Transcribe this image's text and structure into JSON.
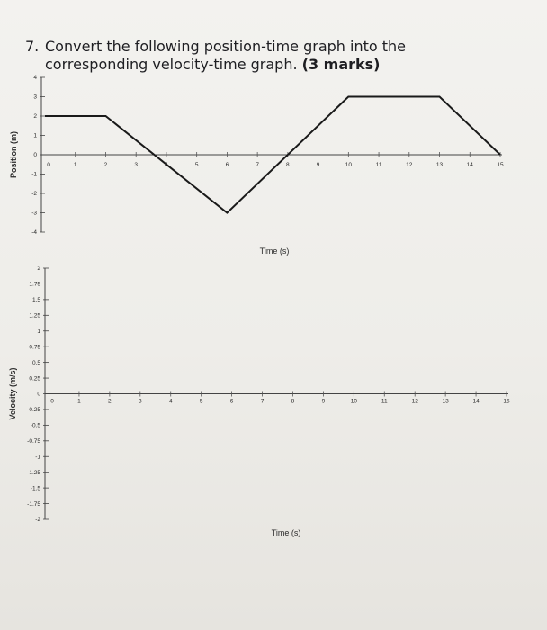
{
  "question": {
    "number": "7.",
    "text": "Convert the following position-time graph into the corresponding velocity-time graph.",
    "marks": "(3 marks)"
  },
  "chart_data": [
    {
      "type": "line",
      "xlabel": "Time (s)",
      "ylabel": "Position (m)",
      "xlim": [
        0,
        15
      ],
      "ylim": [
        -4,
        4
      ],
      "x_ticks": [
        "0",
        "1",
        "2",
        "3",
        "4",
        "5",
        "6",
        "7",
        "8",
        "9",
        "10",
        "11",
        "12",
        "13",
        "14",
        "15"
      ],
      "y_ticks": [
        "4",
        "3",
        "2",
        "1",
        "0",
        "-1",
        "-2",
        "-3",
        "-4"
      ],
      "series": [
        {
          "x": [
            0,
            2,
            6,
            10,
            13,
            15
          ],
          "y": [
            2,
            2,
            -3,
            3,
            3,
            0
          ]
        }
      ]
    },
    {
      "type": "line",
      "xlabel": "Time (s)",
      "ylabel": "Velocity (m/s)",
      "xlim": [
        0,
        15
      ],
      "ylim": [
        -2,
        2
      ],
      "x_ticks": [
        "0",
        "1",
        "2",
        "3",
        "4",
        "5",
        "6",
        "7",
        "8",
        "9",
        "10",
        "11",
        "12",
        "13",
        "14",
        "15"
      ],
      "y_ticks": [
        "2",
        "1.75",
        "1.5",
        "1.25",
        "1",
        "0.75",
        "0.5",
        "0.25",
        "0",
        "-0.25",
        "-0.5",
        "-0.75",
        "-1",
        "-1.25",
        "-1.5",
        "-1.75",
        "-2"
      ],
      "series": []
    }
  ],
  "colors": {
    "paper": "#f0efec",
    "ink": "#1e1e22",
    "line": "#1a1a1a"
  }
}
